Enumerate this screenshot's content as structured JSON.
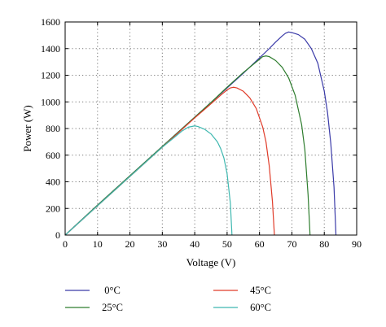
{
  "chart_data": {
    "type": "line",
    "title": "",
    "xlabel": "Voltage (V)",
    "ylabel": "Power (W)",
    "xlim": [
      0,
      90
    ],
    "ylim": [
      0,
      1600
    ],
    "xticks": [
      0,
      10,
      20,
      30,
      40,
      50,
      60,
      70,
      80,
      90
    ],
    "yticks": [
      0,
      200,
      400,
      600,
      800,
      1000,
      1200,
      1400,
      1600
    ],
    "xtick_labels": [
      "0",
      "10",
      "20",
      "30",
      "40",
      "50",
      "60",
      "70",
      "80",
      "90"
    ],
    "ytick_labels": [
      "0",
      "200",
      "400",
      "600",
      "800",
      "1000",
      "1200",
      "1400",
      "1600"
    ],
    "grid": true,
    "legend_position": "below",
    "series": [
      {
        "name": "0°C",
        "color": "#3a3aa8",
        "points": [
          [
            0,
            0
          ],
          [
            10,
            225
          ],
          [
            20,
            445
          ],
          [
            30,
            665
          ],
          [
            40,
            885
          ],
          [
            50,
            1105
          ],
          [
            55,
            1215
          ],
          [
            60,
            1330
          ],
          [
            63,
            1400
          ],
          [
            65,
            1450
          ],
          [
            67,
            1495
          ],
          [
            68,
            1515
          ],
          [
            69,
            1525
          ],
          [
            70,
            1520
          ],
          [
            72,
            1505
          ],
          [
            74,
            1470
          ],
          [
            76,
            1400
          ],
          [
            78,
            1290
          ],
          [
            80,
            1080
          ],
          [
            81,
            920
          ],
          [
            82,
            690
          ],
          [
            83,
            360
          ],
          [
            83.6,
            0
          ]
        ]
      },
      {
        "name": "25°C",
        "color": "#2e7d2e",
        "points": [
          [
            0,
            0
          ],
          [
            10,
            225
          ],
          [
            20,
            445
          ],
          [
            30,
            665
          ],
          [
            40,
            885
          ],
          [
            45,
            995
          ],
          [
            50,
            1110
          ],
          [
            55,
            1220
          ],
          [
            58,
            1280
          ],
          [
            60,
            1320
          ],
          [
            61,
            1340
          ],
          [
            62,
            1345
          ],
          [
            63,
            1340
          ],
          [
            65,
            1310
          ],
          [
            67,
            1260
          ],
          [
            69,
            1180
          ],
          [
            71,
            1050
          ],
          [
            73,
            830
          ],
          [
            74,
            640
          ],
          [
            75,
            300
          ],
          [
            75.6,
            0
          ]
        ]
      },
      {
        "name": "45°C",
        "color": "#e03c2a",
        "points": [
          [
            0,
            0
          ],
          [
            10,
            220
          ],
          [
            20,
            440
          ],
          [
            30,
            660
          ],
          [
            35,
            770
          ],
          [
            40,
            880
          ],
          [
            45,
            985
          ],
          [
            48,
            1050
          ],
          [
            50,
            1090
          ],
          [
            51,
            1105
          ],
          [
            52,
            1110
          ],
          [
            53,
            1105
          ],
          [
            55,
            1080
          ],
          [
            57,
            1030
          ],
          [
            59,
            950
          ],
          [
            61,
            810
          ],
          [
            62,
            700
          ],
          [
            63,
            520
          ],
          [
            64,
            250
          ],
          [
            64.6,
            0
          ]
        ]
      },
      {
        "name": "60°C",
        "color": "#3fb8b0",
        "points": [
          [
            0,
            0
          ],
          [
            10,
            220
          ],
          [
            20,
            440
          ],
          [
            25,
            550
          ],
          [
            30,
            660
          ],
          [
            33,
            720
          ],
          [
            36,
            780
          ],
          [
            38,
            810
          ],
          [
            40,
            820
          ],
          [
            41,
            815
          ],
          [
            43,
            795
          ],
          [
            45,
            760
          ],
          [
            47,
            700
          ],
          [
            48,
            650
          ],
          [
            49,
            580
          ],
          [
            50,
            460
          ],
          [
            51,
            240
          ],
          [
            51.5,
            0
          ]
        ]
      }
    ]
  }
}
